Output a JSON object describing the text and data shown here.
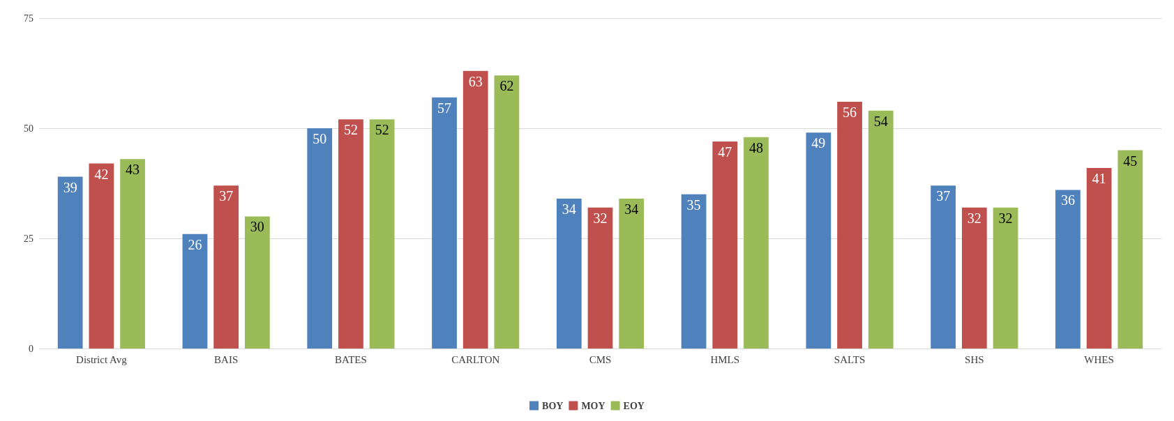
{
  "chart_data": {
    "type": "bar",
    "categories": [
      "District Avg",
      "BAIS",
      "BATES",
      "CARLTON",
      "CMS",
      "HMLS",
      "SALTS",
      "SHS",
      "WHES"
    ],
    "series": [
      {
        "name": "BOY",
        "color": "#4f81bd",
        "values": [
          39,
          26,
          50,
          57,
          34,
          35,
          49,
          37,
          36
        ]
      },
      {
        "name": "MOY",
        "color": "#c0504d",
        "values": [
          42,
          37,
          52,
          63,
          32,
          47,
          56,
          32,
          41
        ]
      },
      {
        "name": "EOY",
        "color": "#9bbb59",
        "values": [
          43,
          30,
          52,
          62,
          34,
          48,
          54,
          32,
          45
        ]
      }
    ],
    "ylim": [
      0,
      75
    ],
    "yticks": [
      0,
      25,
      50,
      75
    ],
    "grid": "y",
    "legend": "bottom",
    "data_labels": true
  }
}
